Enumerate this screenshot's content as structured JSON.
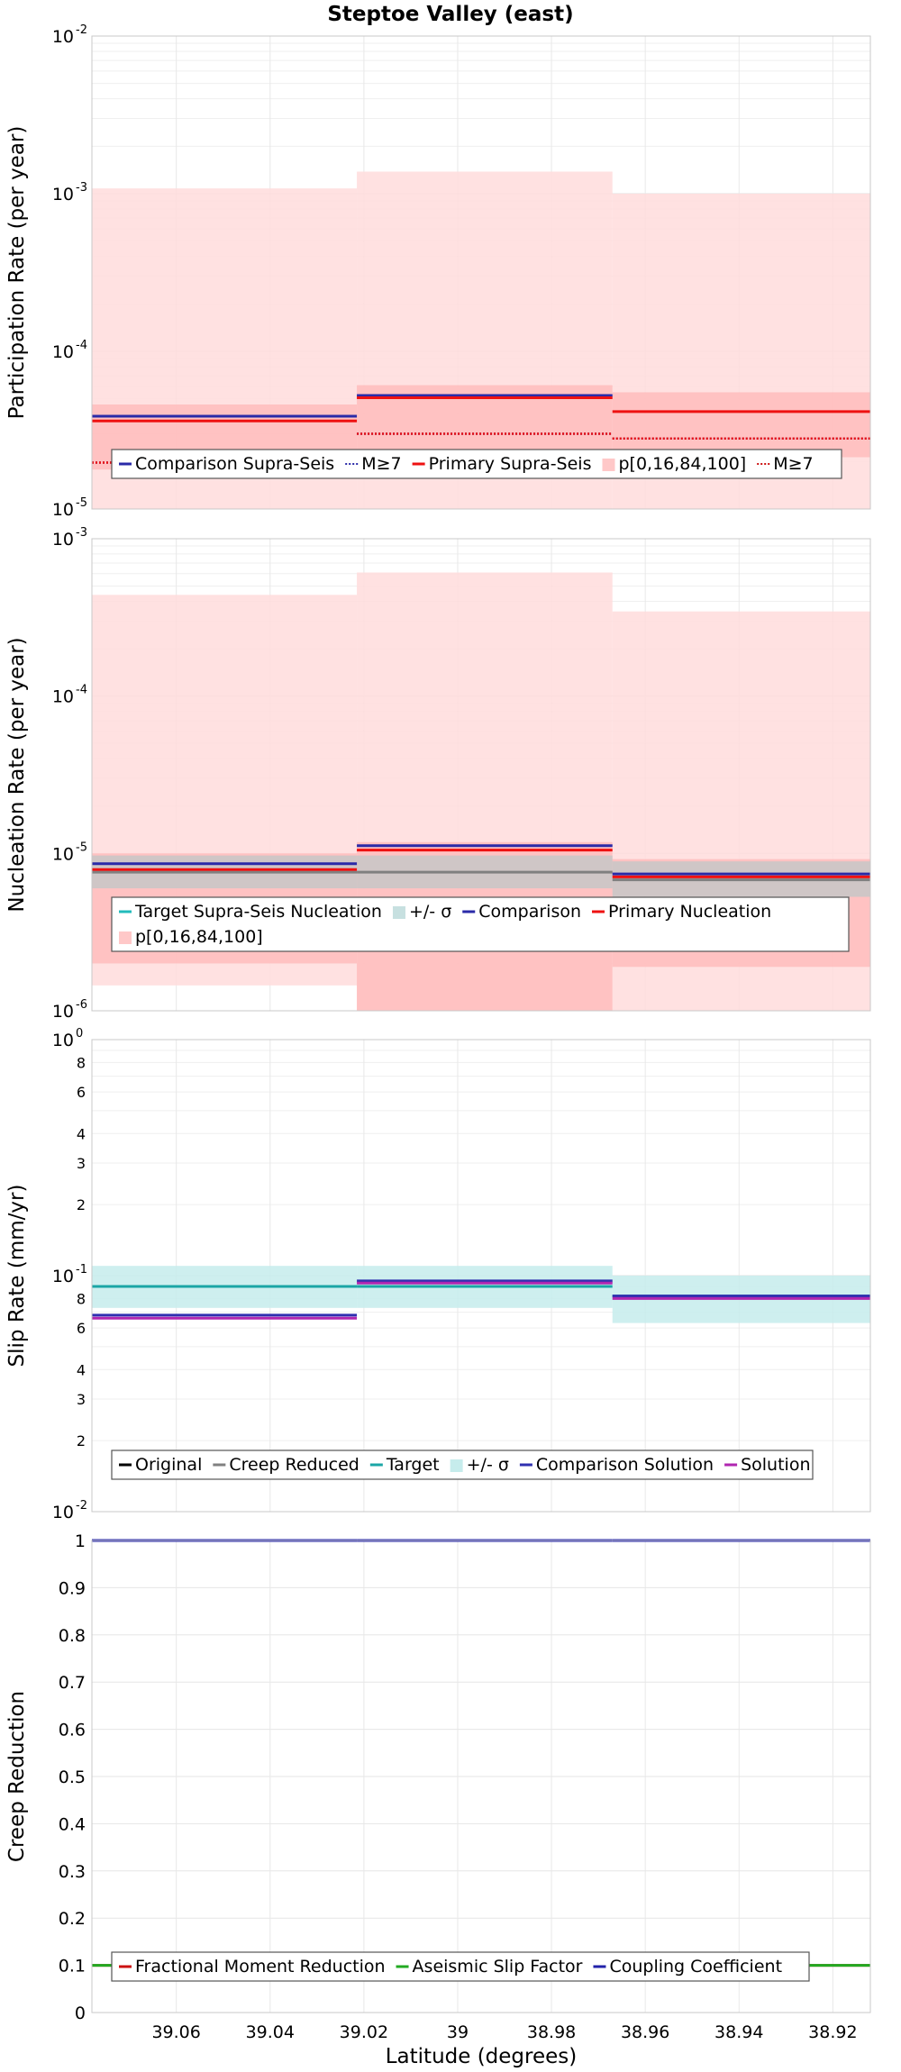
{
  "title": "Steptoe Valley (east)",
  "xlabel": "Latitude (degrees)",
  "x_ticks": [
    39.06,
    39.04,
    39.02,
    39.0,
    38.98,
    38.96,
    38.94,
    38.92
  ],
  "x_tick_labels": [
    "39.06",
    "39.04",
    "39.02",
    "39",
    "38.98",
    "38.96",
    "38.94",
    "38.92"
  ],
  "x_range": [
    39.078,
    38.912
  ],
  "x_reversed": true,
  "segment_edges": [
    39.078,
    39.0215,
    38.967,
    38.912
  ],
  "chart_data": [
    {
      "type": "line",
      "ylabel": "Participation Rate (per year)",
      "yscale": "log",
      "ylim": [
        1e-05,
        0.01
      ],
      "y_tick_labels": [
        {
          "base": "10",
          "exp": "-5",
          "value": 1e-05
        },
        {
          "base": "10",
          "exp": "-4",
          "value": 0.0001
        },
        {
          "base": "10",
          "exp": "-3",
          "value": 0.001
        },
        {
          "base": "10",
          "exp": "-2",
          "value": 0.01
        }
      ],
      "grid": true,
      "legend": [
        "Comparison Supra-Seis",
        "M≥7",
        "Primary Supra-Seis",
        "p[0,16,84,100]",
        "M≥7"
      ],
      "bands": [
        {
          "name": "p[0,16,84,100] outer",
          "color": "#ffdcdc",
          "lower": [
            1e-05,
            1e-05,
            1e-05
          ],
          "upper": [
            0.00108,
            0.00138,
            0.001
          ]
        },
        {
          "name": "p[0,16,84,100] inner",
          "color": "#ffbcbc",
          "lower": [
            1.78e-05,
            2.2e-05,
            2.13e-05
          ],
          "upper": [
            4.6e-05,
            6.1e-05,
            5.5e-05
          ]
        }
      ],
      "series": [
        {
          "name": "Comparison Supra-Seis",
          "color": "#2a2aa8",
          "style": "solid",
          "values": [
            3.88e-05,
            5.25e-05,
            null
          ]
        },
        {
          "name": "M≥7",
          "color": "#2a2aa8",
          "style": "dotted",
          "values": [
            1.97e-05,
            3e-05,
            2.8e-05
          ]
        },
        {
          "name": "Primary Supra-Seis",
          "color": "#ee1111",
          "style": "solid",
          "values": [
            3.62e-05,
            5.08e-05,
            4.15e-05
          ]
        },
        {
          "name": "M≥7",
          "color": "#ee1111",
          "style": "dotted",
          "values": [
            1.97e-05,
            3e-05,
            2.8e-05
          ]
        }
      ]
    },
    {
      "type": "line",
      "ylabel": "Nucleation Rate (per year)",
      "yscale": "log",
      "ylim": [
        1e-06,
        0.001
      ],
      "y_tick_labels": [
        {
          "base": "10",
          "exp": "-6",
          "value": 1e-06
        },
        {
          "base": "10",
          "exp": "-5",
          "value": 1e-05
        },
        {
          "base": "10",
          "exp": "-4",
          "value": 0.0001
        },
        {
          "base": "10",
          "exp": "-3",
          "value": 0.001
        }
      ],
      "grid": true,
      "legend": [
        "Target Supra-Seis Nucleation",
        "+/- σ",
        "Comparison",
        "Primary Nucleation",
        "p[0,16,84,100]"
      ],
      "bands": [
        {
          "name": "p[0,16,84,100] outer",
          "color": "#ffdcdc",
          "lower": [
            1.45e-06,
            1e-06,
            1e-06
          ],
          "upper": [
            0.00044,
            0.00061,
            0.000345
          ]
        },
        {
          "name": "p[0,16,84,100] inner",
          "color": "#ffbcbc",
          "lower": [
            2e-06,
            1e-06,
            1.9e-06
          ],
          "upper": [
            1e-05,
            1.18e-05,
            9.2e-06
          ]
        },
        {
          "name": "+/- σ",
          "color": "#c7c7c7",
          "lower": [
            6e-06,
            6e-06,
            5.3e-06
          ],
          "upper": [
            9.7e-06,
            9.7e-06,
            8.9e-06
          ]
        }
      ],
      "series": [
        {
          "name": "Target Supra-Seis Nucleation",
          "color": "#808080",
          "style": "solid",
          "values": [
            7.6e-06,
            7.6e-06,
            6.8e-06
          ]
        },
        {
          "name": "Comparison",
          "color": "#2a2aa8",
          "style": "solid",
          "values": [
            8.6e-06,
            1.12e-05,
            7.4e-06
          ]
        },
        {
          "name": "Primary Nucleation",
          "color": "#ee1111",
          "style": "solid",
          "values": [
            7.9e-06,
            1.05e-05,
            7.1e-06
          ]
        }
      ]
    },
    {
      "type": "line",
      "ylabel": "Slip Rate (mm/yr)",
      "yscale": "log",
      "ylim": [
        0.01,
        1
      ],
      "y_tick_labels": [
        {
          "base": "10",
          "exp": "-2",
          "value": 0.01
        },
        {
          "base": "10",
          "exp": "-1",
          "value": 0.1
        },
        {
          "base": "10",
          "exp": "0",
          "value": 1
        }
      ],
      "y_minor_labels": [
        "2",
        "3",
        "4",
        "6",
        "8",
        "2",
        "3",
        "4",
        "6",
        "8"
      ],
      "grid": true,
      "legend": [
        "Original",
        "Creep Reduced",
        "Target",
        "+/- σ",
        "Comparison Solution",
        "Solution"
      ],
      "bands": [
        {
          "name": "+/- σ",
          "color": "#c6ecec",
          "lower": [
            0.073,
            0.073,
            0.063
          ],
          "upper": [
            0.11,
            0.11,
            0.1
          ]
        }
      ],
      "series": [
        {
          "name": "Target",
          "color": "#1ba6a6",
          "style": "solid",
          "values": [
            0.09,
            0.09,
            0.082
          ]
        },
        {
          "name": "Comparison Solution",
          "color": "#3030b0",
          "style": "solid",
          "values": [
            0.068,
            0.095,
            0.082
          ]
        },
        {
          "name": "Solution",
          "color": "#b026b0",
          "style": "solid",
          "values": [
            0.066,
            0.093,
            0.08
          ]
        }
      ]
    },
    {
      "type": "line",
      "ylabel": "Creep Reduction",
      "yscale": "linear",
      "ylim": [
        0,
        1
      ],
      "y_ticks": [
        0,
        0.1,
        0.2,
        0.3,
        0.4,
        0.5,
        0.6,
        0.7,
        0.8,
        0.9,
        1
      ],
      "y_tick_labels": [
        "0",
        "0.1",
        "0.2",
        "0.3",
        "0.4",
        "0.5",
        "0.6",
        "0.7",
        "0.8",
        "0.9",
        "1"
      ],
      "grid": true,
      "legend": [
        "Fractional Moment Reduction",
        "Aseismic Slip Factor",
        "Coupling Coefficient"
      ],
      "bands": [],
      "series": [
        {
          "name": "Fractional Moment Reduction",
          "color": "#cc1111",
          "style": "solid",
          "values": [
            0.1,
            0.1,
            0.1
          ]
        },
        {
          "name": "Aseismic Slip Factor",
          "color": "#22aa22",
          "style": "solid",
          "values": [
            0.1,
            0.1,
            0.1
          ]
        },
        {
          "name": "Coupling Coefficient",
          "color": "#2222aa",
          "style": "solid",
          "values": [
            1,
            1,
            1
          ]
        }
      ]
    }
  ],
  "legends": [
    [
      {
        "label": "Comparison Supra-Seis",
        "swatch": "line",
        "color": "#2a2aa8",
        "dash": ""
      },
      {
        "label": "M≥7",
        "swatch": "line",
        "color": "#2a2aa8",
        "dash": "2,2"
      },
      {
        "label": "Primary Supra-Seis",
        "swatch": "line",
        "color": "#ee1111",
        "dash": ""
      },
      {
        "label": "p[0,16,84,100]",
        "swatch": "box",
        "color": "#ffc8c8",
        "dash": ""
      },
      {
        "label": "M≥7",
        "swatch": "line",
        "color": "#cc1111",
        "dash": "2,2"
      }
    ],
    [
      {
        "label": "Target Supra-Seis Nucleation",
        "swatch": "line",
        "color": "#22bbbb",
        "dash": ""
      },
      {
        "label": "+/- σ",
        "swatch": "box",
        "color": "#c7e0e0",
        "dash": ""
      },
      {
        "label": "Comparison",
        "swatch": "line",
        "color": "#2a2aa8",
        "dash": ""
      },
      {
        "label": "Primary Nucleation",
        "swatch": "line",
        "color": "#ee1111",
        "dash": ""
      },
      {
        "label": "p[0,16,84,100]",
        "swatch": "box",
        "color": "#ffc8c8",
        "dash": ""
      }
    ],
    [
      {
        "label": "Original",
        "swatch": "line",
        "color": "#000000",
        "dash": ""
      },
      {
        "label": "Creep Reduced",
        "swatch": "line",
        "color": "#808080",
        "dash": ""
      },
      {
        "label": "Target",
        "swatch": "line",
        "color": "#1ba6a6",
        "dash": ""
      },
      {
        "label": "+/- σ",
        "swatch": "box",
        "color": "#c6ecec",
        "dash": ""
      },
      {
        "label": "Comparison Solution",
        "swatch": "line",
        "color": "#3030b0",
        "dash": ""
      },
      {
        "label": "Solution",
        "swatch": "line",
        "color": "#b026b0",
        "dash": ""
      }
    ],
    [
      {
        "label": "Fractional Moment Reduction",
        "swatch": "line",
        "color": "#cc1111",
        "dash": ""
      },
      {
        "label": "Aseismic Slip Factor",
        "swatch": "line",
        "color": "#22aa22",
        "dash": ""
      },
      {
        "label": "Coupling Coefficient",
        "swatch": "line",
        "color": "#2222aa",
        "dash": ""
      }
    ]
  ]
}
